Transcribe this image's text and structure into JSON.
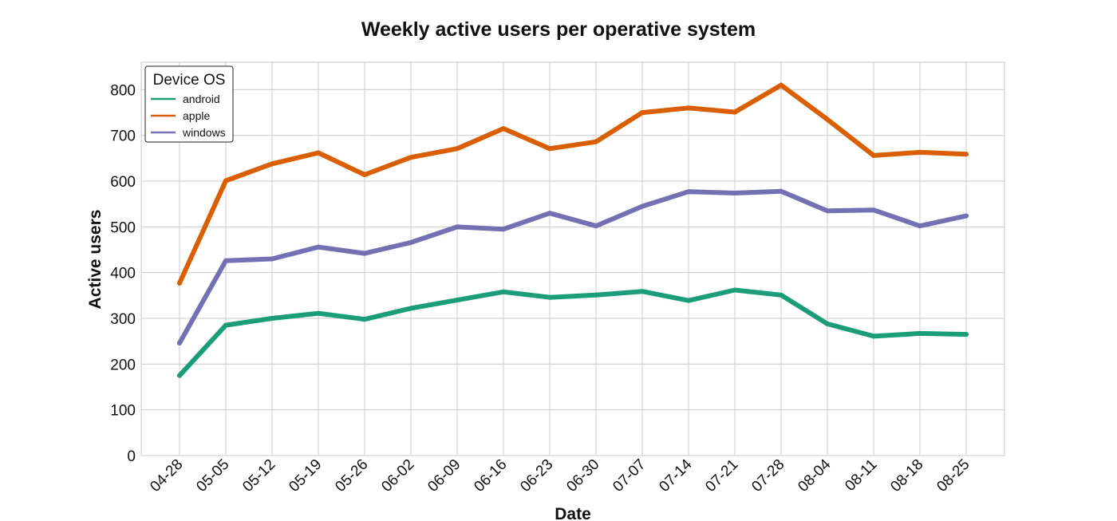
{
  "chart_data": {
    "type": "line",
    "title": "Weekly active users per operative system",
    "xlabel": "Date",
    "ylabel": "Active users",
    "categories": [
      "04-28",
      "05-05",
      "05-12",
      "05-19",
      "05-26",
      "06-02",
      "06-09",
      "06-16",
      "06-23",
      "06-30",
      "07-07",
      "07-14",
      "07-21",
      "07-28",
      "08-04",
      "08-11",
      "08-18",
      "08-25"
    ],
    "ylim": [
      0,
      860
    ],
    "yticks": [
      0,
      100,
      200,
      300,
      400,
      500,
      600,
      700,
      800
    ],
    "grid": true,
    "legend": {
      "title": "Device OS",
      "position": "top-left"
    },
    "series": [
      {
        "name": "android",
        "color": "#1b9e77",
        "values": [
          175,
          285,
          300,
          311,
          298,
          322,
          340,
          358,
          346,
          351,
          359,
          339,
          362,
          351,
          288,
          261,
          267,
          265
        ]
      },
      {
        "name": "apple",
        "color": "#d95f02",
        "values": [
          377,
          601,
          638,
          662,
          614,
          652,
          671,
          715,
          671,
          686,
          750,
          760,
          751,
          810,
          735,
          656,
          663,
          659
        ]
      },
      {
        "name": "windows",
        "color": "#7570b3",
        "values": [
          246,
          426,
          430,
          456,
          442,
          466,
          500,
          495,
          530,
          502,
          545,
          577,
          574,
          578,
          535,
          537,
          502,
          524
        ]
      }
    ]
  }
}
